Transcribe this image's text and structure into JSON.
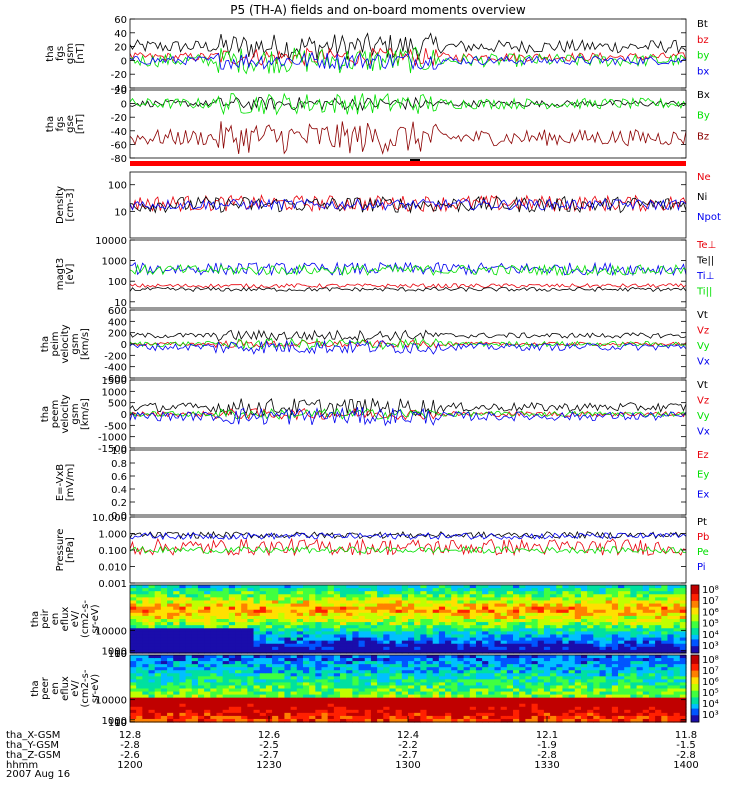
{
  "title": "P5 (TH-A) fields and on-board moments overview",
  "colors": {
    "black": "#000000",
    "red": "#e8000b",
    "green": "#00e000",
    "blue": "#0000f0",
    "darkred": "#8b0000"
  },
  "chart_data": [
    {
      "type": "line",
      "id": "fgs-gsm",
      "ylabel": [
        "tha",
        "fgs",
        "gsm",
        "[nT]"
      ],
      "ylim": [
        -40,
        60
      ],
      "yticks": [
        60,
        40,
        20,
        0,
        -20,
        -40
      ],
      "series": [
        {
          "name": "Bt",
          "color": "black",
          "base": 20,
          "amp": 12
        },
        {
          "name": "bz",
          "color": "red",
          "base": 5,
          "amp": 8
        },
        {
          "name": "by",
          "color": "green",
          "base": 0,
          "amp": 12
        },
        {
          "name": "bx",
          "color": "blue",
          "base": 0,
          "amp": 8
        }
      ]
    },
    {
      "type": "line",
      "id": "fgs-gse",
      "ylabel": [
        "tha",
        "fgs",
        "gse",
        "[nT]"
      ],
      "ylim": [
        -80,
        20
      ],
      "yticks": [
        20,
        0,
        -20,
        -40,
        -60,
        -80
      ],
      "series": [
        {
          "name": "Bx",
          "color": "black",
          "base": 0,
          "amp": 6
        },
        {
          "name": "By",
          "color": "green",
          "base": 0,
          "amp": 10
        },
        {
          "name": "Bz",
          "color": "darkred",
          "base": -50,
          "amp": 15
        }
      ]
    },
    {
      "type": "line",
      "id": "density",
      "log": true,
      "ylabel": [
        "Density",
        "[cm-3]"
      ],
      "ylim": [
        1,
        300
      ],
      "yticks": [
        100,
        10
      ],
      "ytick_labels": [
        "100",
        "10"
      ],
      "series": [
        {
          "name": "Ne",
          "color": "red",
          "base": 20,
          "amp": 0.3
        },
        {
          "name": "Ni",
          "color": "black",
          "base": 18,
          "amp": 0.3
        },
        {
          "name": "Npot",
          "color": "blue",
          "base": 18,
          "amp": 0.2
        }
      ]
    },
    {
      "type": "line",
      "id": "temperature",
      "log": true,
      "ylabel": [
        "magt3",
        "[eV]"
      ],
      "ylim": [
        5,
        10000
      ],
      "yticks": [
        10000,
        1000,
        100,
        10
      ],
      "ytick_labels": [
        "10000",
        "1000",
        "100",
        "10"
      ],
      "series": [
        {
          "name": "Te⊥",
          "color": "red",
          "base": 60,
          "amp": 0.1
        },
        {
          "name": "Te||",
          "color": "black",
          "base": 40,
          "amp": 0.1
        },
        {
          "name": "Ti⊥",
          "color": "blue",
          "base": 400,
          "amp": 0.3
        },
        {
          "name": "Ti||",
          "color": "green",
          "base": 350,
          "amp": 0.25
        }
      ]
    },
    {
      "type": "line",
      "id": "peim-velocity",
      "ylabel": [
        "tha",
        "peim",
        "velocity",
        "gsm",
        "[km/s]"
      ],
      "ylim": [
        -600,
        600
      ],
      "yticks": [
        600,
        400,
        200,
        0,
        -200,
        -400,
        -600
      ],
      "series": [
        {
          "name": "Vt",
          "color": "black",
          "base": 150,
          "amp": 60
        },
        {
          "name": "Vz",
          "color": "red",
          "base": 0,
          "amp": 40
        },
        {
          "name": "Vy",
          "color": "green",
          "base": 0,
          "amp": 60
        },
        {
          "name": "Vx",
          "color": "blue",
          "base": -50,
          "amp": 80
        }
      ]
    },
    {
      "type": "line",
      "id": "peem-velocity",
      "ylabel": [
        "tha",
        "peem",
        "velocity",
        "gsm",
        "[km/s]"
      ],
      "ylim": [
        -1500,
        1500
      ],
      "yticks": [
        1500,
        1000,
        500,
        0,
        -500,
        -1000,
        -1500
      ],
      "series": [
        {
          "name": "Vt",
          "color": "black",
          "base": 300,
          "amp": 250
        },
        {
          "name": "Vz",
          "color": "red",
          "base": 0,
          "amp": 150
        },
        {
          "name": "Vy",
          "color": "green",
          "base": 0,
          "amp": 150
        },
        {
          "name": "Vx",
          "color": "blue",
          "base": -100,
          "amp": 250
        }
      ]
    },
    {
      "type": "line",
      "id": "e-field",
      "ylabel": [
        "E=-VxB",
        "[mV/m]"
      ],
      "ylim": [
        0,
        1.0
      ],
      "yticks": [
        1.0,
        0.8,
        0.6,
        0.4,
        0.2,
        0.0
      ],
      "ytick_labels": [
        "1.0",
        "0.8",
        "0.6",
        "0.4",
        "0.2",
        "0.0"
      ],
      "series": [
        {
          "name": "Ez",
          "color": "red"
        },
        {
          "name": "Ey",
          "color": "green"
        },
        {
          "name": "Ex",
          "color": "blue"
        }
      ]
    },
    {
      "type": "line",
      "id": "pressure",
      "log": true,
      "ylabel": [
        "Pressure",
        "[nPa]"
      ],
      "ylim": [
        0.001,
        10
      ],
      "yticks": [
        10,
        1,
        0.1,
        0.01,
        0.001
      ],
      "ytick_labels": [
        "10.000",
        "1.000",
        "0.100",
        "0.010",
        "0.001"
      ],
      "series": [
        {
          "name": "Pt",
          "color": "black",
          "base": 0.8,
          "amp": 0.2
        },
        {
          "name": "Pb",
          "color": "red",
          "base": 0.15,
          "amp": 0.5
        },
        {
          "name": "Pe",
          "color": "green",
          "base": 0.1,
          "amp": 0.2
        },
        {
          "name": "Pi",
          "color": "blue",
          "base": 0.7,
          "amp": 0.2
        }
      ]
    },
    {
      "type": "heatmap",
      "id": "peir-spectrogram",
      "ylabel": [
        "tha",
        "peir",
        "en",
        "eflux",
        "eV/",
        "(cm2-s-",
        "sr-eV)"
      ],
      "ylim": [
        5,
        30000
      ],
      "yticks": [
        10000,
        1000,
        100,
        10
      ],
      "ytick_labels": [
        "10000",
        "1000",
        "100",
        "10"
      ],
      "colorbar": {
        "range": [
          1000,
          100000000
        ],
        "labels": [
          "10⁸",
          "10⁷",
          "10⁶",
          "10⁵",
          "10⁴",
          "10³"
        ]
      }
    },
    {
      "type": "heatmap",
      "id": "peer-spectrogram",
      "ylabel": [
        "tha",
        "peer",
        "en",
        "eflux",
        "eV/",
        "(cm2-s-",
        "sr-eV)"
      ],
      "ylim": [
        5,
        30000
      ],
      "yticks": [
        10000,
        1000,
        100,
        10
      ],
      "ytick_labels": [
        "10000",
        "1000",
        "100",
        "10"
      ],
      "colorbar": {
        "range": [
          1000,
          100000000
        ],
        "labels": [
          "10⁸",
          "10⁷",
          "10⁶",
          "10⁵",
          "10⁴",
          "10³"
        ]
      }
    }
  ],
  "xaxis": {
    "time_ticks": [
      "1200",
      "1230",
      "1300",
      "1330",
      "1400"
    ],
    "rows": [
      {
        "label": "tha_X-GSM",
        "values": [
          "12.8",
          "12.6",
          "12.4",
          "12.1",
          "11.8"
        ]
      },
      {
        "label": "tha_Y-GSM",
        "values": [
          "-2.8",
          "-2.5",
          "-2.2",
          "-1.9",
          "-1.5"
        ]
      },
      {
        "label": "tha_Z-GSM",
        "values": [
          "-2.6",
          "-2.7",
          "-2.7",
          "-2.8",
          "-2.8"
        ]
      },
      {
        "label": "hhmm",
        "values": [
          "1200",
          "1230",
          "1300",
          "1330",
          "1400"
        ]
      }
    ],
    "date": "2007 Aug 16"
  }
}
